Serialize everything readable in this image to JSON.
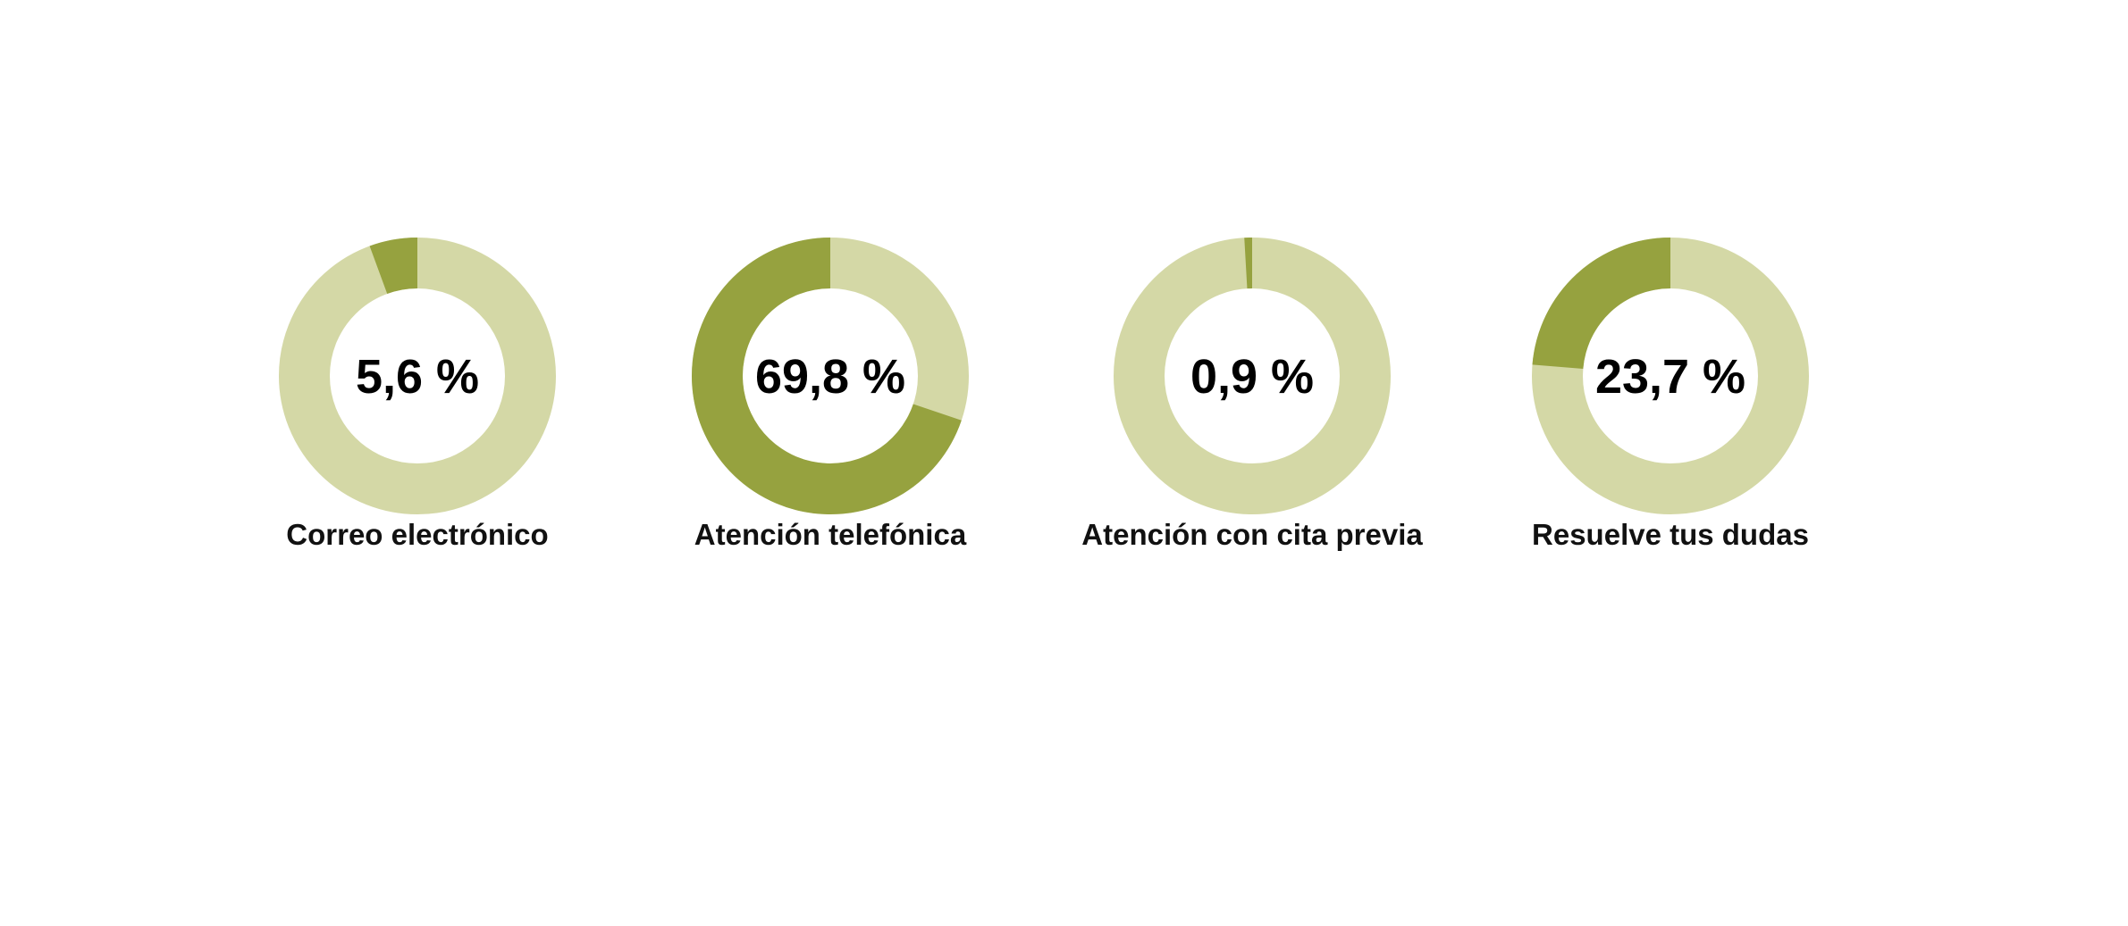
{
  "chart_data": [
    {
      "type": "pie",
      "variant": "donut",
      "label": "Correo electrónico",
      "value": 5.6,
      "value_text": "5,6 %",
      "max": 100
    },
    {
      "type": "pie",
      "variant": "donut",
      "label": "Atención telefónica",
      "value": 69.8,
      "value_text": "69,8 %",
      "max": 100
    },
    {
      "type": "pie",
      "variant": "donut",
      "label": "Atención con cita previa",
      "value": 0.9,
      "value_text": "0,9 %",
      "max": 100
    },
    {
      "type": "pie",
      "variant": "donut",
      "label": "Resuelve tus dudas",
      "value": 23.7,
      "value_text": "23,7 %",
      "max": 100
    }
  ],
  "colors": {
    "filled": "#96a23f",
    "remaining": "#d4d8a6",
    "background": "#ffffff"
  }
}
